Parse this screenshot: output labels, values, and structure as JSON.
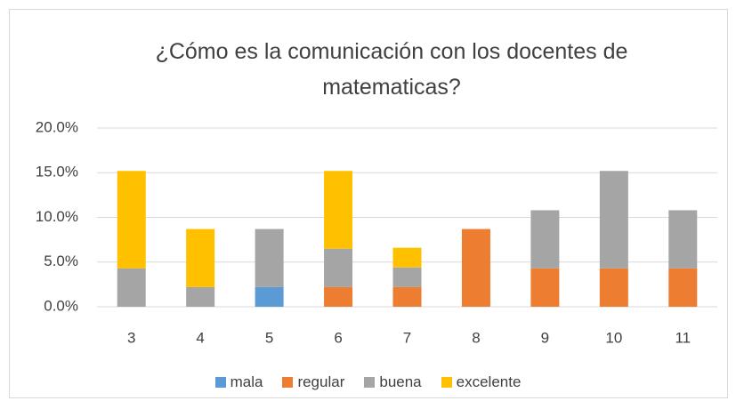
{
  "chart_data": {
    "type": "stacked_bar",
    "title": "¿Cómo es la comunicación con los docentes de matematicas?",
    "categories": [
      "3",
      "4",
      "5",
      "6",
      "7",
      "8",
      "9",
      "10",
      "11"
    ],
    "series": [
      {
        "name": "mala",
        "color": "#5b9bd5",
        "values": [
          0,
          0,
          2.2,
          0,
          0,
          0,
          0,
          0,
          0
        ]
      },
      {
        "name": "regular",
        "color": "#ed7d31",
        "values": [
          0,
          0,
          0,
          2.2,
          2.2,
          8.7,
          4.3,
          4.3,
          4.3
        ]
      },
      {
        "name": "buena",
        "color": "#a5a5a5",
        "values": [
          4.3,
          2.2,
          6.5,
          4.3,
          2.2,
          0,
          6.5,
          10.9,
          6.5
        ]
      },
      {
        "name": "excelente",
        "color": "#ffc000",
        "values": [
          10.9,
          6.5,
          0,
          8.7,
          2.2,
          0,
          0,
          0,
          0
        ]
      }
    ],
    "ylim": [
      0,
      20
    ],
    "yticks": [
      {
        "value": 0,
        "label": "0.0%"
      },
      {
        "value": 5,
        "label": "5.0%"
      },
      {
        "value": 10,
        "label": "10.0%"
      },
      {
        "value": 15,
        "label": "15.0%"
      },
      {
        "value": 20,
        "label": "20.0%"
      }
    ],
    "grid": true,
    "legend": "bottom"
  }
}
